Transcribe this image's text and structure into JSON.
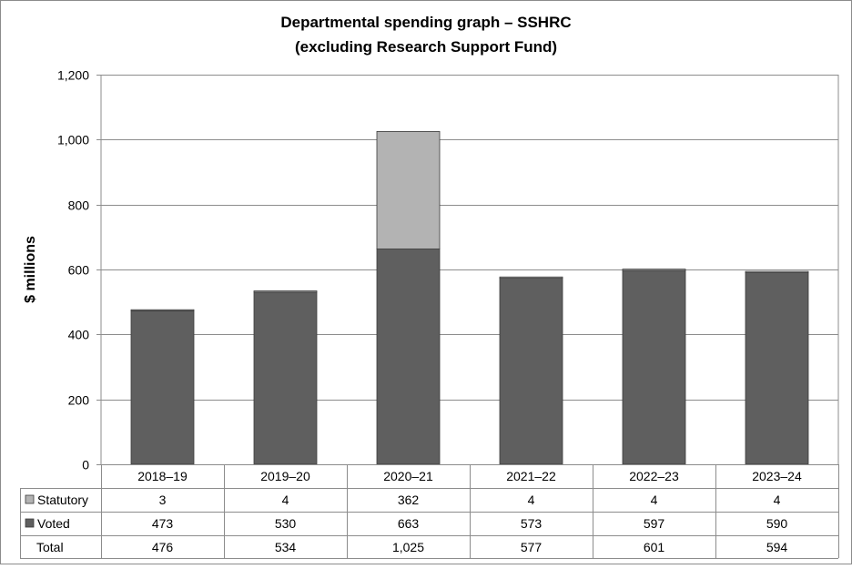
{
  "chart_data": {
    "type": "bar",
    "stacked": true,
    "title_line1": "Departmental spending graph – SSHRC",
    "title_line2": "(excluding Research Support Fund)",
    "xlabel": "",
    "ylabel": "$ millions",
    "ylim": [
      0,
      1200
    ],
    "yticks": [
      0,
      200,
      400,
      600,
      800,
      1000,
      1200
    ],
    "ytick_labels": [
      "0",
      "200",
      "400",
      "600",
      "800",
      "1,000",
      "1,200"
    ],
    "grid": true,
    "categories": [
      "2018–19",
      "2019–20",
      "2020–21",
      "2021–22",
      "2022–23",
      "2023–24"
    ],
    "series": [
      {
        "name": "Voted",
        "color": "#5f5f5f",
        "values": [
          473,
          530,
          663,
          573,
          597,
          590
        ],
        "labels": [
          "473",
          "530",
          "663",
          "573",
          "597",
          "590"
        ]
      },
      {
        "name": "Statutory",
        "color": "#b3b3b3",
        "values": [
          3,
          4,
          362,
          4,
          4,
          4
        ],
        "labels": [
          "3",
          "4",
          "362",
          "4",
          "4",
          "4"
        ]
      }
    ],
    "table_rows": [
      {
        "label": "Statutory",
        "series": "Statutory",
        "swatch": "#b3b3b3",
        "values": [
          "3",
          "4",
          "362",
          "4",
          "4",
          "4"
        ]
      },
      {
        "label": "Voted",
        "series": "Voted",
        "swatch": "#5f5f5f",
        "values": [
          "473",
          "530",
          "663",
          "573",
          "597",
          "590"
        ]
      },
      {
        "label": "Total",
        "series": null,
        "swatch": null,
        "values": [
          "476",
          "534",
          "1,025",
          "577",
          "601",
          "594"
        ]
      }
    ]
  }
}
